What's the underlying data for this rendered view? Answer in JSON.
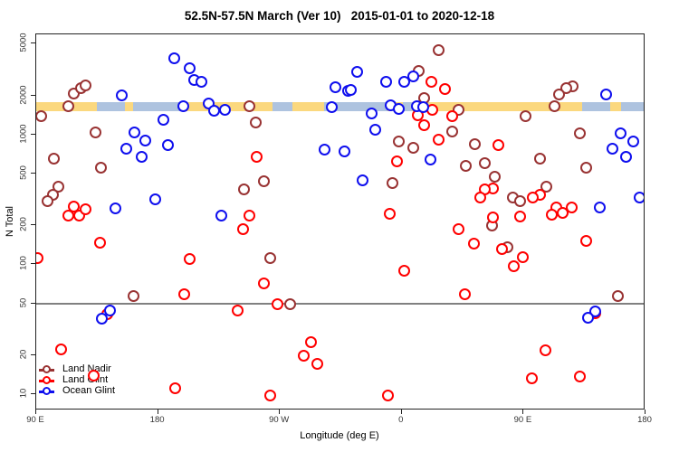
{
  "title": "52.5N-57.5N March (Ver 10)   2015-01-01 to 2020-12-18",
  "axes": {
    "y_label": "N Total",
    "x_label": "Longitude (deg E)",
    "y_ticks": [
      5000,
      2000,
      1000,
      500,
      200,
      100,
      50,
      20,
      10
    ],
    "x_ticks": [
      {
        "ext_lon": 90,
        "label": "90 E"
      },
      {
        "ext_lon": 180,
        "label": "180"
      },
      {
        "ext_lon": 270,
        "label": "90 W"
      },
      {
        "ext_lon": 360,
        "label": "0"
      },
      {
        "ext_lon": 450,
        "label": "90 E"
      },
      {
        "ext_lon": 540,
        "label": "180"
      }
    ]
  },
  "legend": [
    {
      "label": "Land Nadir",
      "color": "#993333"
    },
    {
      "label": "Land Glint",
      "color": "#FF0000"
    },
    {
      "label": "Ocean Glint",
      "color": "#0F0FEE"
    }
  ],
  "colors": {
    "land_nadir": "#993333",
    "land_glint": "#FF0000",
    "ocean_glint": "#0F0FEE",
    "band_land": "#FBD87E",
    "band_ocean": "#AEC3DF",
    "reference_line": "#808080"
  },
  "chart_data": {
    "type": "scatter",
    "title": "52.5N-57.5N March (Ver 10)   2015-01-01 to 2020-12-18",
    "xlabel": "Longitude (deg E)",
    "ylabel": "N Total",
    "x_axis_note": "extended longitude degrees east, axis runs 90E through 180, 90W, 0, 90E to 180 (90 to 540)",
    "xlim": [
      90,
      540
    ],
    "ylim": [
      7.5,
      6000
    ],
    "yscale": "log",
    "reference_line_value": 50,
    "land_ocean_band": {
      "value_top": 1770,
      "value_bottom": 1510,
      "segments": [
        {
          "from": 90,
          "to": 134.8,
          "type": "land"
        },
        {
          "from": 134.8,
          "to": 155.5,
          "type": "ocean"
        },
        {
          "from": 155.5,
          "to": 161.5,
          "type": "land"
        },
        {
          "from": 161.5,
          "to": 197.7,
          "type": "ocean"
        },
        {
          "from": 197.7,
          "to": 264.5,
          "type": "land"
        },
        {
          "from": 264.5,
          "to": 279.2,
          "type": "ocean"
        },
        {
          "from": 279.2,
          "to": 302.6,
          "type": "land"
        },
        {
          "from": 302.6,
          "to": 349.4,
          "type": "ocean"
        },
        {
          "from": 349.4,
          "to": 352.5,
          "type": "land"
        },
        {
          "from": 352.5,
          "to": 355.5,
          "type": "ocean"
        },
        {
          "from": 355.5,
          "to": 360.5,
          "type": "land"
        },
        {
          "from": 360.5,
          "to": 367.5,
          "type": "ocean"
        },
        {
          "from": 367.5,
          "to": 493,
          "type": "land"
        },
        {
          "from": 493,
          "to": 514,
          "type": "ocean"
        },
        {
          "from": 514,
          "to": 522,
          "type": "land"
        },
        {
          "from": 522,
          "to": 540,
          "type": "ocean"
        }
      ]
    },
    "series": [
      {
        "name": "Land Nadir",
        "color": "#993333",
        "points": [
          [
            117,
            2100
          ],
          [
            122.5,
            2300
          ],
          [
            126,
            2430
          ],
          [
            113,
            1680
          ],
          [
            93,
            1410
          ],
          [
            133,
            1050
          ],
          [
            102.7,
            665
          ],
          [
            137,
            560
          ],
          [
            106,
            400
          ],
          [
            102,
            351
          ],
          [
            97.4,
            314
          ],
          [
            161.3,
            58
          ],
          [
            276.9,
            50
          ],
          [
            262,
            114
          ],
          [
            246.5,
            1680
          ],
          [
            251.6,
            1260
          ],
          [
            257.2,
            445
          ],
          [
            242.7,
            385
          ],
          [
            386.4,
            4500
          ],
          [
            371.6,
            3140
          ],
          [
            376,
            1940
          ],
          [
            401,
            1570
          ],
          [
            396.6,
            1080
          ],
          [
            357,
            905
          ],
          [
            367.8,
            800
          ],
          [
            413.4,
            850
          ],
          [
            420.5,
            610
          ],
          [
            406.3,
            580
          ],
          [
            352.2,
            430
          ],
          [
            427.8,
            480
          ],
          [
            426,
            202
          ],
          [
            485.8,
            2400
          ],
          [
            480.9,
            2330
          ],
          [
            475.3,
            2060
          ],
          [
            471.9,
            1680
          ],
          [
            450.8,
            1410
          ],
          [
            490.7,
            1040
          ],
          [
            461.7,
            665
          ],
          [
            495.8,
            560
          ],
          [
            466,
            405
          ],
          [
            441.2,
            330
          ],
          [
            446.8,
            312
          ],
          [
            437.2,
            137
          ],
          [
            519.1,
            58
          ]
        ]
      },
      {
        "name": "Land Glint",
        "color": "#FF0000",
        "points": [
          [
            117,
            285
          ],
          [
            113,
            243
          ],
          [
            121,
            240
          ],
          [
            126,
            268
          ],
          [
            136.8,
            150
          ],
          [
            90.2,
            113
          ],
          [
            202.5,
            111
          ],
          [
            198.6,
            60
          ],
          [
            141.7,
            42
          ],
          [
            107.8,
            22.3
          ],
          [
            131.9,
            14.2
          ],
          [
            192.2,
            11.3
          ],
          [
            252,
            680
          ],
          [
            246.5,
            242
          ],
          [
            242,
            189
          ],
          [
            257.2,
            73
          ],
          [
            238.3,
            45
          ],
          [
            267.4,
            50
          ],
          [
            292.6,
            25.6
          ],
          [
            287,
            20.2
          ],
          [
            297,
            17.4
          ],
          [
            262,
            9.9
          ],
          [
            381,
            2600
          ],
          [
            391.2,
            2270
          ],
          [
            371,
            1440
          ],
          [
            382,
            1570
          ],
          [
            396.6,
            1410
          ],
          [
            376,
            1190
          ],
          [
            386.3,
            930
          ],
          [
            431,
            840
          ],
          [
            356,
            635
          ],
          [
            426.8,
            390
          ],
          [
            420.8,
            387
          ],
          [
            417.2,
            330
          ],
          [
            350.6,
            250
          ],
          [
            426.8,
            232
          ],
          [
            401.2,
            189
          ],
          [
            412.3,
            146
          ],
          [
            433.4,
            133
          ],
          [
            361,
            90
          ],
          [
            406,
            60
          ],
          [
            349,
            9.9
          ],
          [
            461.2,
            348
          ],
          [
            456.3,
            330
          ],
          [
            473.5,
            278
          ],
          [
            484.7,
            278
          ],
          [
            478,
            255
          ],
          [
            470.2,
            247
          ],
          [
            446.8,
            238
          ],
          [
            449,
            115
          ],
          [
            441.9,
            99
          ],
          [
            495.8,
            155
          ],
          [
            502.3,
            43
          ],
          [
            465.7,
            22.2
          ],
          [
            490.9,
            13.9
          ],
          [
            455.7,
            13.5
          ]
        ]
      },
      {
        "name": "Ocean Glint",
        "color": "#0F0FEE",
        "points": [
          [
            191.5,
            3950
          ],
          [
            203,
            3300
          ],
          [
            206,
            2680
          ],
          [
            211.5,
            2570
          ],
          [
            152.5,
            2020
          ],
          [
            197.7,
            1690
          ],
          [
            183,
            1330
          ],
          [
            162,
            1050
          ],
          [
            170,
            920
          ],
          [
            156,
            790
          ],
          [
            167,
            680
          ],
          [
            186.5,
            840
          ],
          [
            177,
            323
          ],
          [
            148,
            276
          ],
          [
            144,
            44.5
          ],
          [
            137.9,
            38.7
          ],
          [
            216.9,
            1750
          ],
          [
            220.9,
            1550
          ],
          [
            228.7,
            1570
          ],
          [
            226.4,
            242
          ],
          [
            302.3,
            775
          ],
          [
            316.9,
            750
          ],
          [
            310.6,
            2350
          ],
          [
            320,
            2200
          ],
          [
            307.7,
            1640
          ],
          [
            326.6,
            3100
          ],
          [
            347.7,
            2570
          ],
          [
            361,
            2600
          ],
          [
            367.8,
            2830
          ],
          [
            321.7,
            2230
          ],
          [
            351,
            1700
          ],
          [
            357.3,
            1590
          ],
          [
            337.3,
            1480
          ],
          [
            370.6,
            1680
          ],
          [
            375,
            1640
          ],
          [
            340,
            1110
          ],
          [
            380.5,
            650
          ],
          [
            330.4,
            450
          ],
          [
            510.3,
            2060
          ],
          [
            521,
            1040
          ],
          [
            530,
            905
          ],
          [
            514.8,
            790
          ],
          [
            524.8,
            680
          ],
          [
            505.4,
            278
          ],
          [
            535.2,
            330
          ],
          [
            502,
            44.3
          ],
          [
            496.8,
            39.3
          ]
        ]
      }
    ],
    "legend_position": "bottom-left"
  }
}
